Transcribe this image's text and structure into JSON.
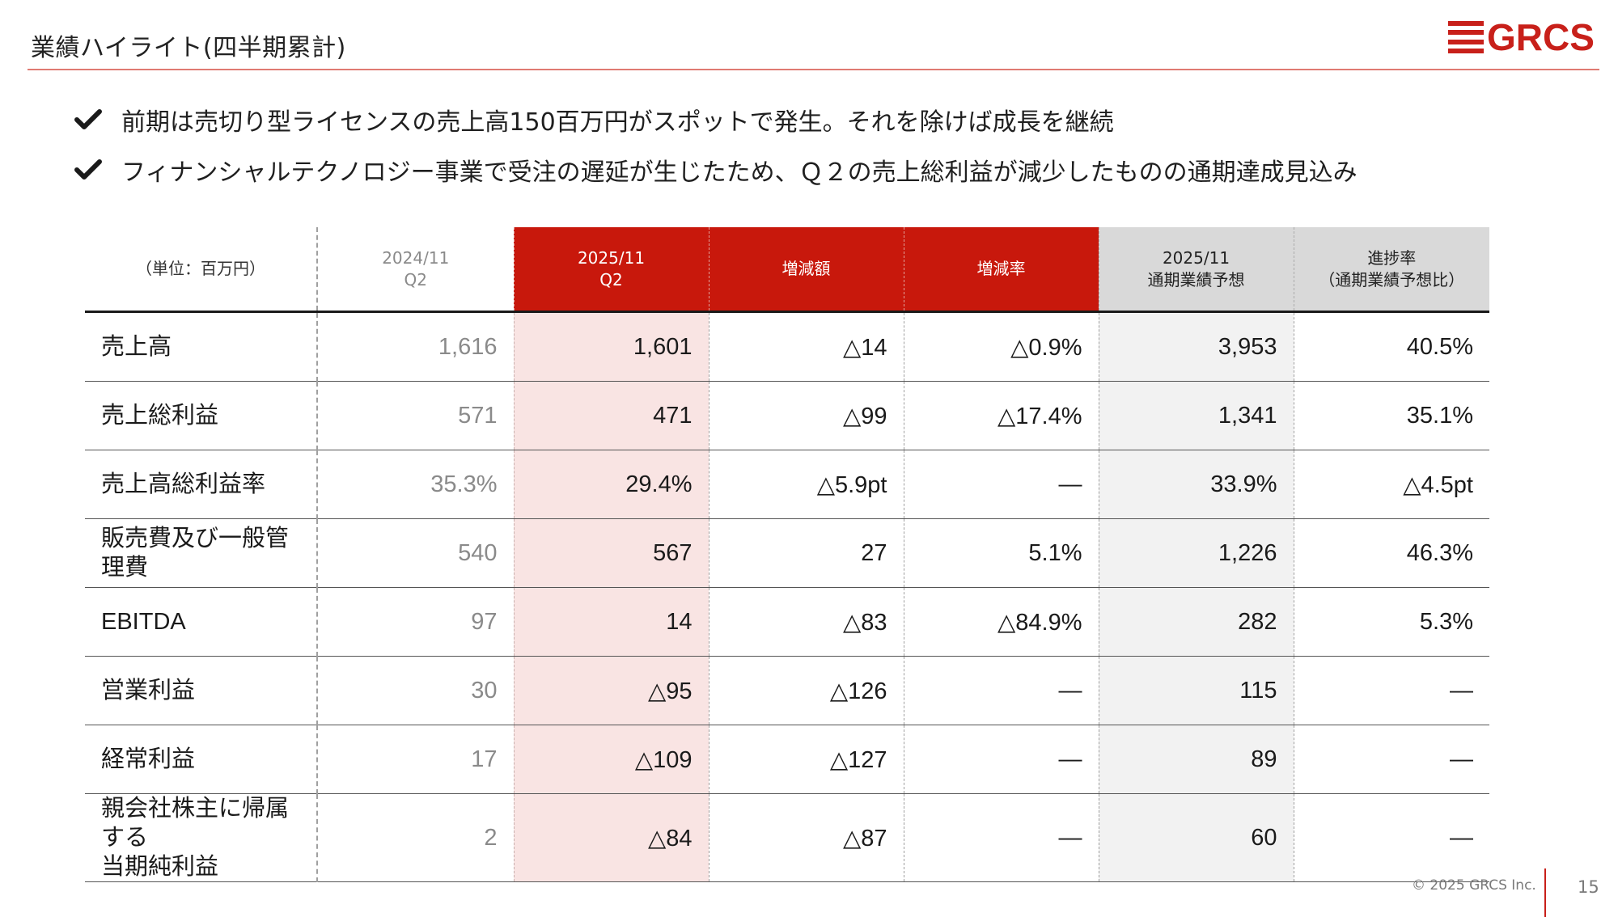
{
  "header": {
    "title": "業績ハイライト(四半期累計)",
    "logo_text": "GRCS",
    "accent_color": "#c8201a"
  },
  "bullets": [
    {
      "icon": "checkmark-icon",
      "text": "前期は売切り型ライセンスの売上高150百万円がスポットで発生。それを除けば成長を継続"
    },
    {
      "icon": "checkmark-icon",
      "text": "フィナンシャルテクノロジー事業で受注の遅延が生じたため、Ｑ２の売上総利益が減少したものの通期達成見込み"
    }
  ],
  "table": {
    "headers": {
      "unit": "（単位：百万円）",
      "prev_line1": "2024/11",
      "prev_line2": "Q2",
      "cur_line1": "2025/11",
      "cur_line2": "Q2",
      "diff": "増減額",
      "rate": "増減率",
      "fc_line1": "2025/11",
      "fc_line2": "通期業績予想",
      "prog_line1": "進捗率",
      "prog_line2": "（通期業績予想比）"
    },
    "rows": [
      {
        "label": "売上高",
        "prev": "1,616",
        "cur": "1,601",
        "diff": "△14",
        "rate": "△0.9%",
        "fc": "3,953",
        "prog": "40.5%"
      },
      {
        "label": "売上総利益",
        "prev": "571",
        "cur": "471",
        "diff": "△99",
        "rate": "△17.4%",
        "fc": "1,341",
        "prog": "35.1%"
      },
      {
        "label": "売上高総利益率",
        "prev": "35.3%",
        "cur": "29.4%",
        "diff": "△5.9pt",
        "rate": "—",
        "fc": "33.9%",
        "prog": "△4.5pt"
      },
      {
        "label": "販売費及び一般管理費",
        "prev": "540",
        "cur": "567",
        "diff": "27",
        "rate": "5.1%",
        "fc": "1,226",
        "prog": "46.3%"
      },
      {
        "label": "EBITDA",
        "prev": "97",
        "cur": "14",
        "diff": "△83",
        "rate": "△84.9%",
        "fc": "282",
        "prog": "5.3%"
      },
      {
        "label": "営業利益",
        "prev": "30",
        "cur": "△95",
        "diff": "△126",
        "rate": "—",
        "fc": "115",
        "prog": "—"
      },
      {
        "label": "経常利益",
        "prev": "17",
        "cur": "△109",
        "diff": "△127",
        "rate": "—",
        "fc": "89",
        "prog": "—"
      },
      {
        "label_line1": "親会社株主に帰属する",
        "label_line2": "当期純利益",
        "prev": "2",
        "cur": "△84",
        "diff": "△87",
        "rate": "—",
        "fc": "60",
        "prog": "—"
      }
    ]
  },
  "footer": {
    "copyright": "© 2025 GRCS Inc.",
    "page_number": "15"
  }
}
